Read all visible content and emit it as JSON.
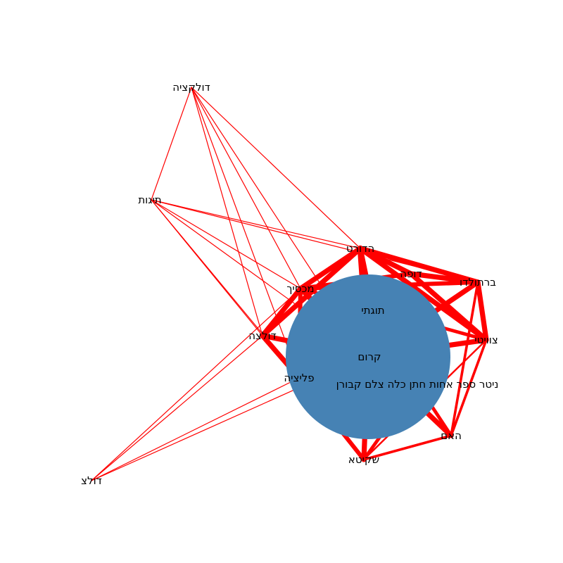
{
  "graph": {
    "edge_color": "#ff0000",
    "hub_color": "#4682b4",
    "nodes": [
      {
        "id": "hub",
        "label": "קרום",
        "hub": true
      },
      {
        "id": "tutiti",
        "label": "תוגתי"
      },
      {
        "id": "terude",
        "label": "הדורט"
      },
      {
        "id": "dupa",
        "label": "דופה"
      },
      {
        "id": "bartulda",
        "label": "ברתולדו"
      },
      {
        "id": "mechasik",
        "label": "מכסיך"
      },
      {
        "id": "dulaza",
        "label": "דולצה"
      },
      {
        "id": "tzuviti",
        "label": "צוויטי"
      },
      {
        "id": "pelitzia",
        "label": "פליציה"
      },
      {
        "id": "long",
        "label": "ניטר ספר אחות חתן כלה צלם קבורן"
      },
      {
        "id": "haam",
        "label": "האם"
      },
      {
        "id": "shakita",
        "label": "שקיטא"
      },
      {
        "id": "dulkatzia",
        "label": "דולקציה"
      },
      {
        "id": "tigut",
        "label": "תיגות"
      },
      {
        "id": "dulatz",
        "label": "דולצ"
      }
    ],
    "edges": [
      {
        "s": "terude",
        "t": "dupa",
        "w": 6
      },
      {
        "s": "terude",
        "t": "bartulda",
        "w": 6
      },
      {
        "s": "terude",
        "t": "tzuviti",
        "w": 6
      },
      {
        "s": "terude",
        "t": "mechasik",
        "w": 6
      },
      {
        "s": "terude",
        "t": "dulaza",
        "w": 6
      },
      {
        "s": "terude",
        "t": "hub",
        "w": 7
      },
      {
        "s": "terude",
        "t": "tutiti",
        "w": 6
      },
      {
        "s": "dupa",
        "t": "bartulda",
        "w": 6
      },
      {
        "s": "dupa",
        "t": "tzuviti",
        "w": 6
      },
      {
        "s": "dupa",
        "t": "mechasik",
        "w": 5
      },
      {
        "s": "bartulda",
        "t": "tzuviti",
        "w": 6
      },
      {
        "s": "bartulda",
        "t": "hub",
        "w": 6
      },
      {
        "s": "bartulda",
        "t": "mechasik",
        "w": 5
      },
      {
        "s": "bartulda",
        "t": "haam",
        "w": 3
      },
      {
        "s": "tzuviti",
        "t": "hub",
        "w": 6
      },
      {
        "s": "tzuviti",
        "t": "haam",
        "w": 3
      },
      {
        "s": "tzuviti",
        "t": "shakita",
        "w": 2
      },
      {
        "s": "tzuviti",
        "t": "mechasik",
        "w": 4
      },
      {
        "s": "mechasik",
        "t": "dulaza",
        "w": 6
      },
      {
        "s": "mechasik",
        "t": "hub",
        "w": 6
      },
      {
        "s": "mechasik",
        "t": "pelitzia",
        "w": 5
      },
      {
        "s": "dulaza",
        "t": "pelitzia",
        "w": 6
      },
      {
        "s": "dulaza",
        "t": "hub",
        "w": 6
      },
      {
        "s": "pelitzia",
        "t": "hub",
        "w": 5
      },
      {
        "s": "pelitzia",
        "t": "shakita",
        "w": 5
      },
      {
        "s": "hub",
        "t": "haam",
        "w": 6
      },
      {
        "s": "hub",
        "t": "shakita",
        "w": 6
      },
      {
        "s": "haam",
        "t": "shakita",
        "w": 3
      },
      {
        "s": "long",
        "t": "haam",
        "w": 4
      },
      {
        "s": "long",
        "t": "shakita",
        "w": 4
      },
      {
        "s": "dulkatzia",
        "t": "tigut",
        "w": 1
      },
      {
        "s": "dulkatzia",
        "t": "terude",
        "w": 1
      },
      {
        "s": "dulkatzia",
        "t": "mechasik",
        "w": 1
      },
      {
        "s": "dulkatzia",
        "t": "dulaza",
        "w": 1
      },
      {
        "s": "dulkatzia",
        "t": "pelitzia",
        "w": 1
      },
      {
        "s": "dulkatzia",
        "t": "hub",
        "w": 1
      },
      {
        "s": "tigut",
        "t": "terude",
        "w": 1
      },
      {
        "s": "tigut",
        "t": "bartulda",
        "w": 1
      },
      {
        "s": "tigut",
        "t": "mechasik",
        "w": 1
      },
      {
        "s": "tigut",
        "t": "dulaza",
        "w": 1
      },
      {
        "s": "tigut",
        "t": "hub",
        "w": 1
      },
      {
        "s": "tigut",
        "t": "pelitzia",
        "w": 1
      },
      {
        "s": "dulatz",
        "t": "dulaza",
        "w": 1
      },
      {
        "s": "dulatz",
        "t": "mechasik",
        "w": 1
      },
      {
        "s": "dulatz",
        "t": "pelitzia",
        "w": 1
      },
      {
        "s": "dulatz",
        "t": "hub",
        "w": 1
      }
    ]
  }
}
